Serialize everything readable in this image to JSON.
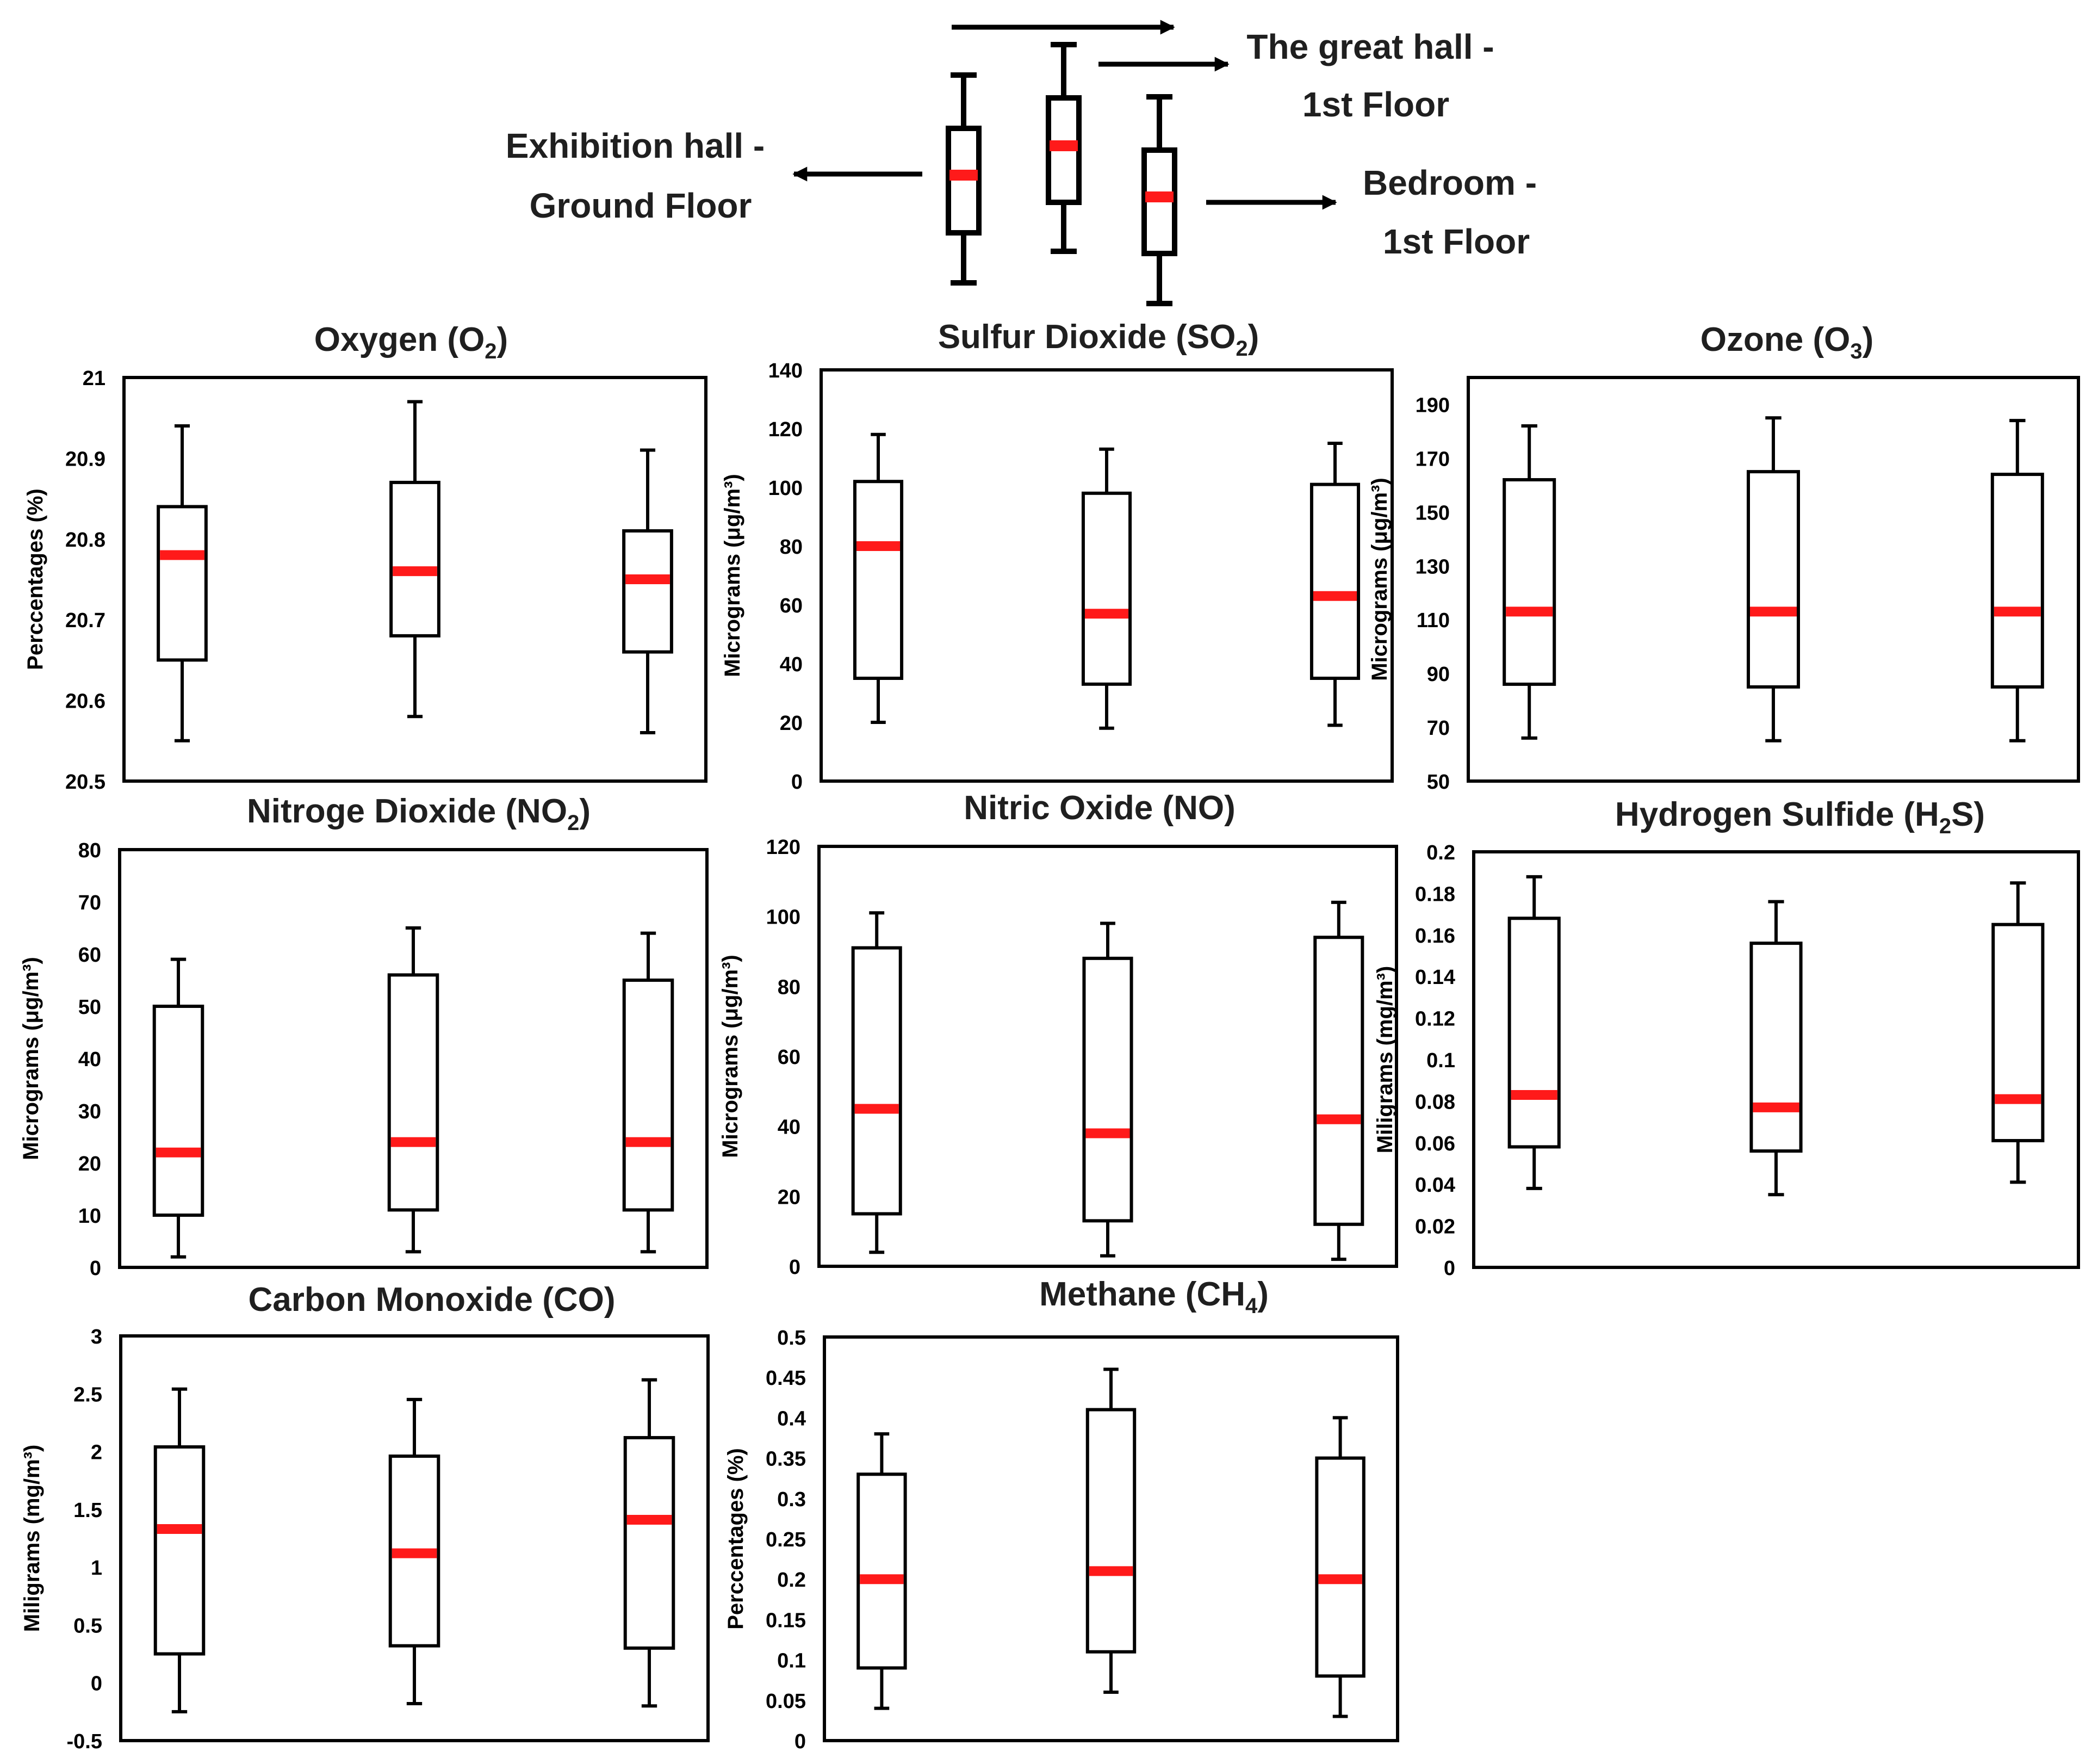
{
  "legend": {
    "groups": [
      {
        "line1": "Exhibition hall -",
        "line2": "Ground Floor"
      },
      {
        "line1": "The great hall -",
        "line2": "1st Floor"
      },
      {
        "line1": "Bedroom -",
        "line2": "1st Floor"
      }
    ]
  },
  "colors": {
    "median": "#ff1a1a",
    "box": "#000000",
    "title_gray": "#555555"
  },
  "chart_data": [
    {
      "type": "box",
      "title_main": "Oxygen (O",
      "title_sub": "2",
      "title_tail": ")",
      "ylabel": "Perccentages (%)",
      "ylim": [
        20.5,
        21
      ],
      "yticks": [
        "20.5",
        "20.6",
        "20.7",
        "20.8",
        "20.9",
        "21"
      ],
      "categories": [
        "Exhibition hall - Ground Floor",
        "The great hall - 1st Floor",
        "Bedroom - 1st Floor"
      ],
      "boxes": [
        {
          "min": 20.55,
          "q1": 20.65,
          "median": 20.78,
          "q3": 20.84,
          "max": 20.94
        },
        {
          "min": 20.58,
          "q1": 20.68,
          "median": 20.76,
          "q3": 20.87,
          "max": 20.97
        },
        {
          "min": 20.56,
          "q1": 20.66,
          "median": 20.75,
          "q3": 20.81,
          "max": 20.91
        }
      ]
    },
    {
      "type": "box",
      "title_main": "Sulfur Dioxide (SO",
      "title_sub": "2",
      "title_tail": ")",
      "ylabel": "Micrograms (μg/m³)",
      "ylim": [
        0,
        140
      ],
      "yticks": [
        "0",
        "20",
        "40",
        "60",
        "80",
        "100",
        "120",
        "140"
      ],
      "categories": [
        "Exhibition hall - Ground Floor",
        "The great hall - 1st Floor",
        "Bedroom - 1st Floor"
      ],
      "boxes": [
        {
          "min": 20,
          "q1": 35,
          "median": 80,
          "q3": 102,
          "max": 118
        },
        {
          "min": 18,
          "q1": 33,
          "median": 57,
          "q3": 98,
          "max": 113
        },
        {
          "min": 19,
          "q1": 35,
          "median": 63,
          "q3": 101,
          "max": 115
        }
      ]
    },
    {
      "type": "box",
      "title_main": "Ozone (O",
      "title_sub": "3",
      "title_tail": ")",
      "ylabel": "Micrograms (μg/m³)",
      "ylim": [
        50,
        200
      ],
      "yticks": [
        "50",
        "70",
        "90",
        "110",
        "130",
        "150",
        "170",
        "190"
      ],
      "categories": [
        "Exhibition hall - Ground Floor",
        "The great hall - 1st Floor",
        "Bedroom - 1st Floor"
      ],
      "boxes": [
        {
          "min": 66,
          "q1": 86,
          "median": 113,
          "q3": 162,
          "max": 182
        },
        {
          "min": 65,
          "q1": 85,
          "median": 113,
          "q3": 165,
          "max": 185
        },
        {
          "min": 65,
          "q1": 85,
          "median": 113,
          "q3": 164,
          "max": 184
        }
      ]
    },
    {
      "type": "box",
      "title_main": "Nitroge Dioxide (NO",
      "title_sub": "2",
      "title_tail": ")",
      "ylabel": "Micrograms (μg/m³)",
      "ylim": [
        0,
        80
      ],
      "yticks": [
        "0",
        "10",
        "20",
        "30",
        "40",
        "50",
        "60",
        "70",
        "80"
      ],
      "categories": [
        "Exhibition hall - Ground Floor",
        "The great hall - 1st Floor",
        "Bedroom - 1st Floor"
      ],
      "boxes": [
        {
          "min": 2,
          "q1": 10,
          "median": 22,
          "q3": 50,
          "max": 59
        },
        {
          "min": 3,
          "q1": 11,
          "median": 24,
          "q3": 56,
          "max": 65
        },
        {
          "min": 3,
          "q1": 11,
          "median": 24,
          "q3": 55,
          "max": 64
        }
      ]
    },
    {
      "type": "box",
      "title_main": "Nitric Oxide (NO)",
      "title_sub": "",
      "title_tail": "",
      "ylabel": "Micrograms (μg/m³)",
      "ylim": [
        0,
        120
      ],
      "yticks": [
        "0",
        "20",
        "40",
        "60",
        "80",
        "100",
        "120"
      ],
      "categories": [
        "Exhibition hall - Ground Floor",
        "The great hall - 1st Floor",
        "Bedroom - 1st Floor"
      ],
      "boxes": [
        {
          "min": 4,
          "q1": 15,
          "median": 45,
          "q3": 91,
          "max": 101
        },
        {
          "min": 3,
          "q1": 13,
          "median": 38,
          "q3": 88,
          "max": 98
        },
        {
          "min": 2,
          "q1": 12,
          "median": 42,
          "q3": 94,
          "max": 104
        }
      ]
    },
    {
      "type": "box",
      "title_main": "Hydrogen Sulfide (H",
      "title_sub": "2",
      "title_tail": "S)",
      "ylabel": "Miligrams (mg/m³)",
      "ylim": [
        0,
        0.2
      ],
      "yticks": [
        "0",
        "0.02",
        "0.04",
        "0.06",
        "0.08",
        "0.1",
        "0.12",
        "0.14",
        "0.16",
        "0.18",
        "0.2"
      ],
      "categories": [
        "Exhibition hall - Ground Floor",
        "The great hall - 1st Floor",
        "Bedroom - 1st Floor"
      ],
      "boxes": [
        {
          "min": 0.038,
          "q1": 0.058,
          "median": 0.083,
          "q3": 0.168,
          "max": 0.188
        },
        {
          "min": 0.035,
          "q1": 0.056,
          "median": 0.077,
          "q3": 0.156,
          "max": 0.176
        },
        {
          "min": 0.041,
          "q1": 0.061,
          "median": 0.081,
          "q3": 0.165,
          "max": 0.185
        }
      ]
    },
    {
      "type": "box",
      "title_main": "Carbon Monoxide (CO)",
      "title_sub": "",
      "title_tail": "",
      "ylabel": "Miligrams (mg/m³)",
      "ylim": [
        -0.5,
        3
      ],
      "yticks": [
        "-0.5",
        "0",
        "0.5",
        "1",
        "1.5",
        "2",
        "2.5",
        "3"
      ],
      "categories": [
        "Exhibition hall - Ground Floor",
        "The great hall - 1st Floor",
        "Bedroom - 1st Floor"
      ],
      "boxes": [
        {
          "min": -0.25,
          "q1": 0.25,
          "median": 1.33,
          "q3": 2.04,
          "max": 2.54
        },
        {
          "min": -0.18,
          "q1": 0.32,
          "median": 1.12,
          "q3": 1.96,
          "max": 2.45
        },
        {
          "min": -0.2,
          "q1": 0.3,
          "median": 1.41,
          "q3": 2.12,
          "max": 2.62
        }
      ]
    },
    {
      "type": "box",
      "title_main": "Methane (CH",
      "title_sub": "4",
      "title_tail": ")",
      "ylabel": "Perccentages (%)",
      "ylim": [
        0,
        0.5
      ],
      "yticks": [
        "0",
        "0.05",
        "0.1",
        "0.15",
        "0.2",
        "0.25",
        "0.3",
        "0.35",
        "0.4",
        "0.45",
        "0.5"
      ],
      "categories": [
        "Exhibition hall - Ground Floor",
        "The great hall - 1st Floor",
        "Bedroom - 1st Floor"
      ],
      "boxes": [
        {
          "min": 0.04,
          "q1": 0.09,
          "median": 0.2,
          "q3": 0.33,
          "max": 0.38
        },
        {
          "min": 0.06,
          "q1": 0.11,
          "median": 0.21,
          "q3": 0.41,
          "max": 0.46
        },
        {
          "min": 0.03,
          "q1": 0.08,
          "median": 0.2,
          "q3": 0.35,
          "max": 0.4
        }
      ]
    }
  ]
}
